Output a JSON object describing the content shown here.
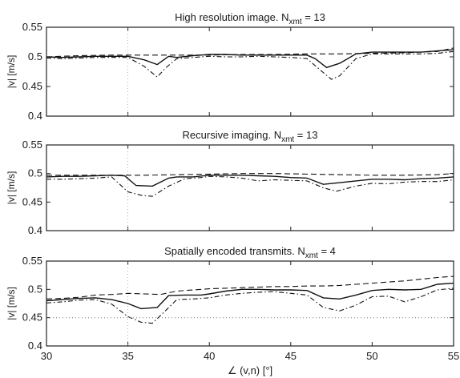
{
  "chart_data": [
    {
      "type": "line",
      "title": "High resolution image. N_xmt = 13",
      "title_main": "High resolution image. N",
      "title_sub": "xmt",
      "title_tail": " = 13",
      "ylabel": "|v| [m/s]",
      "xlabel": "",
      "xlim": [
        30,
        55
      ],
      "ylim": [
        0.4,
        0.55
      ],
      "x_ticks": [],
      "y_ticks": [
        "0.4",
        "0.45",
        "0.5",
        "0.55"
      ],
      "y_tick_values": [
        0.4,
        0.45,
        0.5,
        0.55
      ],
      "grid": false,
      "series": [
        {
          "style": "solid",
          "x": [
            30,
            31,
            32,
            33,
            34,
            35,
            36,
            36.8,
            37.5,
            38,
            39,
            40,
            41,
            42,
            43,
            44,
            45,
            46,
            46.5,
            47.2,
            48,
            49,
            50,
            51,
            52,
            53,
            54,
            55
          ],
          "y": [
            0.5,
            0.499,
            0.5,
            0.501,
            0.501,
            0.501,
            0.495,
            0.487,
            0.501,
            0.499,
            0.502,
            0.504,
            0.504,
            0.503,
            0.503,
            0.503,
            0.503,
            0.503,
            0.497,
            0.482,
            0.489,
            0.505,
            0.508,
            0.508,
            0.508,
            0.508,
            0.51,
            0.512
          ]
        },
        {
          "style": "dashed",
          "x": [
            30,
            32,
            34,
            36,
            38,
            40,
            42,
            44,
            46,
            48,
            50,
            52,
            54,
            55
          ],
          "y": [
            0.5,
            0.502,
            0.503,
            0.503,
            0.503,
            0.503,
            0.504,
            0.504,
            0.505,
            0.505,
            0.506,
            0.507,
            0.509,
            0.515
          ]
        },
        {
          "style": "dashdot",
          "x": [
            30,
            31,
            32,
            33,
            34,
            35,
            36,
            36.8,
            37.3,
            38,
            39,
            40,
            41,
            42,
            43,
            44,
            45,
            46,
            46.8,
            47.5,
            48,
            49,
            50,
            51,
            52,
            53,
            54,
            55
          ],
          "y": [
            0.498,
            0.497,
            0.498,
            0.499,
            0.499,
            0.499,
            0.484,
            0.466,
            0.481,
            0.497,
            0.499,
            0.501,
            0.5,
            0.5,
            0.501,
            0.5,
            0.499,
            0.497,
            0.478,
            0.462,
            0.468,
            0.497,
            0.505,
            0.505,
            0.505,
            0.505,
            0.506,
            0.509
          ]
        }
      ]
    },
    {
      "type": "line",
      "title": "Recursive imaging. N_xmt = 13",
      "title_main": "Recursive imaging. N",
      "title_sub": "xmt",
      "title_tail": " = 13",
      "ylabel": "|v| [m/s]",
      "xlabel": "",
      "xlim": [
        30,
        55
      ],
      "ylim": [
        0.4,
        0.55
      ],
      "x_ticks": [],
      "y_ticks": [
        "0.4",
        "0.45",
        "0.5",
        "0.55"
      ],
      "y_tick_values": [
        0.4,
        0.45,
        0.5,
        0.55
      ],
      "grid": false,
      "series": [
        {
          "style": "solid",
          "x": [
            30,
            31,
            32,
            33,
            34,
            34.8,
            35.5,
            36.5,
            37.5,
            38,
            39,
            40,
            41,
            42,
            43,
            44,
            45,
            46,
            47,
            48,
            49,
            50,
            51,
            52,
            53,
            54,
            55
          ],
          "y": [
            0.494,
            0.495,
            0.495,
            0.496,
            0.497,
            0.496,
            0.479,
            0.478,
            0.492,
            0.494,
            0.494,
            0.497,
            0.497,
            0.497,
            0.496,
            0.495,
            0.493,
            0.492,
            0.481,
            0.484,
            0.487,
            0.49,
            0.49,
            0.489,
            0.491,
            0.492,
            0.494
          ]
        },
        {
          "style": "dashed",
          "x": [
            30,
            32,
            34,
            36,
            38,
            40,
            42,
            44,
            46,
            48,
            50,
            52,
            54,
            55
          ],
          "y": [
            0.497,
            0.497,
            0.497,
            0.497,
            0.498,
            0.499,
            0.5,
            0.5,
            0.499,
            0.498,
            0.497,
            0.497,
            0.498,
            0.5
          ]
        },
        {
          "style": "dashdot",
          "x": [
            30,
            31,
            32,
            33,
            34,
            35,
            35.8,
            36.5,
            37.5,
            38.5,
            39.5,
            40,
            41,
            42,
            43,
            44,
            45,
            46,
            47,
            47.8,
            49,
            50,
            51,
            52,
            53,
            54,
            55
          ],
          "y": [
            0.49,
            0.49,
            0.491,
            0.492,
            0.494,
            0.468,
            0.462,
            0.46,
            0.478,
            0.491,
            0.493,
            0.495,
            0.494,
            0.492,
            0.487,
            0.489,
            0.488,
            0.487,
            0.475,
            0.469,
            0.478,
            0.483,
            0.482,
            0.485,
            0.486,
            0.486,
            0.489
          ]
        }
      ]
    },
    {
      "type": "line",
      "title": "Spatially encoded transmits. N_xmt = 4",
      "title_main": "Spatially encoded transmits. N",
      "title_sub": "xmt",
      "title_tail": " = 4",
      "ylabel": "|v| [m/s]",
      "xlabel": "∠ (v,n) [°]",
      "xlim": [
        30,
        55
      ],
      "ylim": [
        0.4,
        0.55
      ],
      "x_ticks": [
        "30",
        "35",
        "40",
        "45",
        "50",
        "55"
      ],
      "x_tick_values": [
        30,
        35,
        40,
        45,
        50,
        55
      ],
      "y_ticks": [
        "0.4",
        "0.45",
        "0.5",
        "0.55"
      ],
      "y_tick_values": [
        0.4,
        0.45,
        0.5,
        0.55
      ],
      "grid": false,
      "series": [
        {
          "style": "solid",
          "x": [
            30,
            31,
            32,
            33,
            34,
            35,
            35.8,
            36.8,
            37.5,
            38.5,
            39.5,
            40,
            41,
            42,
            43,
            44,
            45,
            46,
            47,
            48,
            49,
            50,
            51,
            52,
            53,
            54,
            55
          ],
          "y": [
            0.48,
            0.482,
            0.484,
            0.485,
            0.482,
            0.475,
            0.466,
            0.468,
            0.489,
            0.49,
            0.49,
            0.492,
            0.497,
            0.5,
            0.5,
            0.499,
            0.499,
            0.498,
            0.485,
            0.483,
            0.49,
            0.498,
            0.5,
            0.499,
            0.5,
            0.509,
            0.511
          ]
        },
        {
          "style": "dashed",
          "x": [
            30,
            31,
            32,
            33,
            34,
            35,
            36,
            37,
            38,
            39,
            40,
            41,
            42,
            43,
            44,
            45,
            46,
            47,
            48,
            49,
            50,
            51,
            52,
            53,
            54,
            55
          ],
          "y": [
            0.483,
            0.484,
            0.486,
            0.49,
            0.491,
            0.493,
            0.492,
            0.491,
            0.497,
            0.499,
            0.501,
            0.502,
            0.503,
            0.504,
            0.505,
            0.505,
            0.506,
            0.506,
            0.507,
            0.509,
            0.511,
            0.513,
            0.515,
            0.518,
            0.521,
            0.523
          ]
        },
        {
          "style": "dashdot",
          "x": [
            30,
            31,
            32,
            33,
            34,
            35,
            35.8,
            36.5,
            37.3,
            38,
            39,
            40,
            41,
            42,
            43,
            44,
            45,
            46,
            47,
            48,
            49,
            50,
            51,
            52,
            53,
            54,
            55
          ],
          "y": [
            0.476,
            0.478,
            0.481,
            0.482,
            0.474,
            0.452,
            0.442,
            0.44,
            0.462,
            0.482,
            0.483,
            0.485,
            0.49,
            0.493,
            0.495,
            0.496,
            0.493,
            0.49,
            0.468,
            0.462,
            0.472,
            0.487,
            0.488,
            0.478,
            0.487,
            0.499,
            0.502
          ]
        },
        {
          "style": "dotted",
          "x": [
            30,
            55
          ],
          "y": [
            0.45,
            0.45
          ]
        }
      ]
    }
  ]
}
